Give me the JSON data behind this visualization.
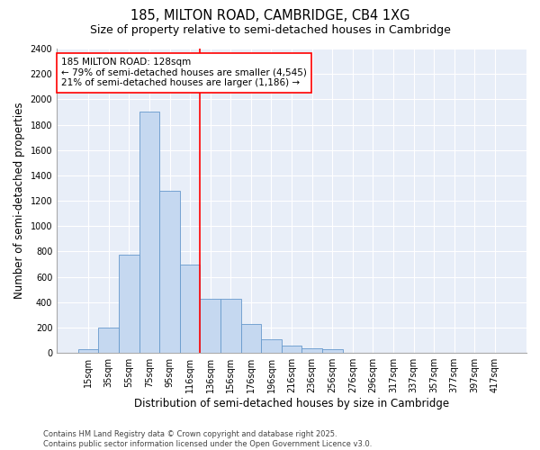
{
  "title": "185, MILTON ROAD, CAMBRIDGE, CB4 1XG",
  "subtitle": "Size of property relative to semi-detached houses in Cambridge",
  "xlabel": "Distribution of semi-detached houses by size in Cambridge",
  "ylabel": "Number of semi-detached properties",
  "categories": [
    "15sqm",
    "35sqm",
    "55sqm",
    "75sqm",
    "95sqm",
    "116sqm",
    "136sqm",
    "156sqm",
    "176sqm",
    "196sqm",
    "216sqm",
    "236sqm",
    "256sqm",
    "276sqm",
    "296sqm",
    "317sqm",
    "337sqm",
    "357sqm",
    "377sqm",
    "397sqm",
    "417sqm"
  ],
  "bar_heights": [
    30,
    200,
    775,
    1900,
    1280,
    700,
    430,
    430,
    230,
    110,
    60,
    35,
    30,
    0,
    0,
    0,
    0,
    0,
    0,
    0,
    0
  ],
  "bar_color": "#c5d8f0",
  "bar_edge_color": "#6699cc",
  "vline_color": "red",
  "annotation_line1": "185 MILTON ROAD: 128sqm",
  "annotation_line2": "← 79% of semi-detached houses are smaller (4,545)",
  "annotation_line3": "21% of semi-detached houses are larger (1,186) →",
  "ylim": [
    0,
    2400
  ],
  "yticks": [
    0,
    200,
    400,
    600,
    800,
    1000,
    1200,
    1400,
    1600,
    1800,
    2000,
    2200,
    2400
  ],
  "footer": "Contains HM Land Registry data © Crown copyright and database right 2025.\nContains public sector information licensed under the Open Government Licence v3.0.",
  "bg_color": "#e8eef8",
  "grid_color": "#ffffff",
  "title_fontsize": 10.5,
  "subtitle_fontsize": 9,
  "axis_label_fontsize": 8.5,
  "tick_fontsize": 7,
  "footer_fontsize": 6,
  "annotation_fontsize": 7.5
}
